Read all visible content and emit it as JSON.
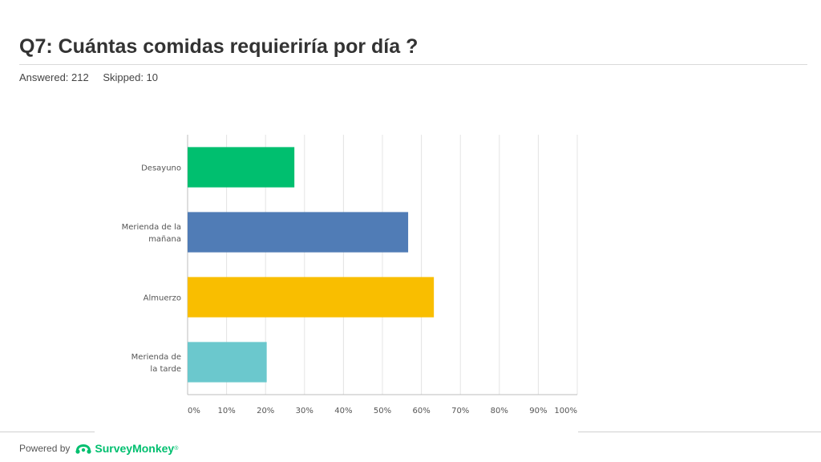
{
  "header": {
    "title": "Q7: Cuántas comidas requieriría por día ?",
    "answered": "Answered: 212",
    "skipped": "Skipped: 10"
  },
  "footer": {
    "powered_by": "Powered by",
    "brand": "SurveyMonkey",
    "brand_mark": "®"
  },
  "chart_data": {
    "type": "bar",
    "orientation": "horizontal",
    "categories": [
      [
        "Desayuno"
      ],
      [
        "Merienda de la",
        "mañana"
      ],
      [
        "Almuerzo"
      ],
      [
        "Merienda de",
        "la tarde"
      ]
    ],
    "values": [
      27.4,
      56.6,
      63.2,
      20.3
    ],
    "colors": [
      "#00bf6f",
      "#507cb6",
      "#f9be00",
      "#6bc8cd"
    ],
    "xlim": [
      0,
      100
    ],
    "xticks": [
      "0%",
      "10%",
      "20%",
      "30%",
      "40%",
      "50%",
      "60%",
      "70%",
      "80%",
      "90%",
      "100%"
    ],
    "grid": true,
    "xlabel": "",
    "ylabel": ""
  }
}
